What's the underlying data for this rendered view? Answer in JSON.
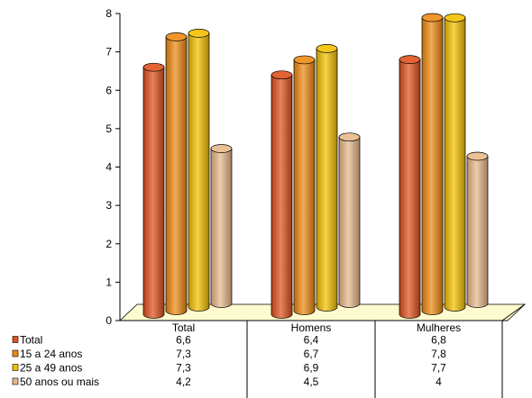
{
  "chart_data": {
    "type": "bar",
    "title": "",
    "xlabel": "",
    "ylabel": "",
    "ylim": [
      0,
      8
    ],
    "yticks": [
      "0",
      "1",
      "2",
      "3",
      "4",
      "5",
      "6",
      "7",
      "8"
    ],
    "categories": [
      "Total",
      "Homens",
      "Mulheres"
    ],
    "series": [
      {
        "name": "Total",
        "values": [
          6.6,
          6.4,
          6.8
        ],
        "value_labels": [
          "6,6",
          "6,4",
          "6,8"
        ],
        "color": "#e0521e"
      },
      {
        "name": "15 a 24 anos",
        "values": [
          7.3,
          6.7,
          7.8
        ],
        "value_labels": [
          "7,3",
          "6,7",
          "7,8"
        ],
        "color": "#ef8a12"
      },
      {
        "name": "25 a 49 anos",
        "values": [
          7.3,
          6.9,
          7.7
        ],
        "value_labels": [
          "7,3",
          "6,9",
          "7,7"
        ],
        "color": "#f4c000"
      },
      {
        "name": "50 anos ou mais",
        "values": [
          4.2,
          4.5,
          4.0
        ],
        "value_labels": [
          "4,2",
          "4,5",
          "4"
        ],
        "color": "#e8b98a"
      }
    ],
    "grid": false,
    "legend": "data-table-left",
    "floor_color": "#fffbd0"
  }
}
